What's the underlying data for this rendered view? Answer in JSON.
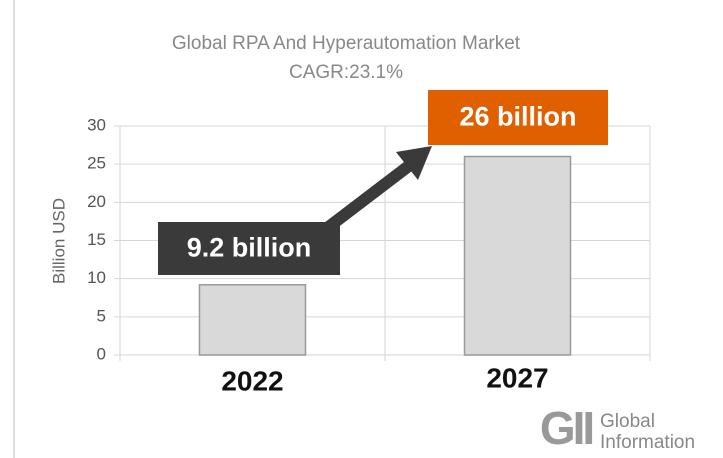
{
  "chart_data": {
    "type": "bar",
    "title": "Global  RPA And Hyperautomation Market",
    "subtitle": "CAGR:23.1%",
    "y_label": "Billion USD",
    "categories": [
      "2022",
      "2027"
    ],
    "values": [
      9.2,
      26
    ],
    "value_labels": [
      "9.2 billion",
      "26 billion"
    ],
    "color": "#d9d9d9",
    "ylim": [
      0,
      30
    ],
    "yticks": [
      0,
      5,
      10,
      15,
      20,
      25,
      30
    ],
    "grid": true
  },
  "logo": {
    "mark": "GII",
    "line1": "Global",
    "line2": "Information"
  }
}
